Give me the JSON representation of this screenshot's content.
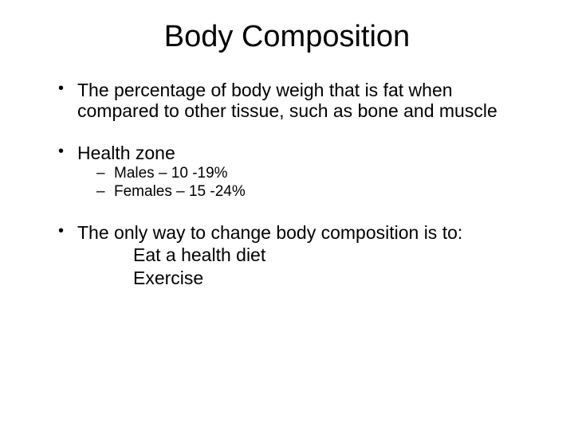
{
  "title": "Body Composition",
  "bullets": {
    "b1": "The percentage of body weigh that is fat when compared to other tissue, such as bone and muscle",
    "b2": "Health zone",
    "b2_sub1": "Males – 10 -19%",
    "b2_sub2": "Females – 15 -24%",
    "b3": "The only way to change body composition is to:",
    "b3_line1": "Eat a health diet",
    "b3_line2": "Exercise"
  },
  "style": {
    "background_color": "#ffffff",
    "text_color": "#000000",
    "title_fontsize": 38,
    "body_fontsize": 23,
    "sub_fontsize": 19,
    "font_family": "Arial"
  }
}
